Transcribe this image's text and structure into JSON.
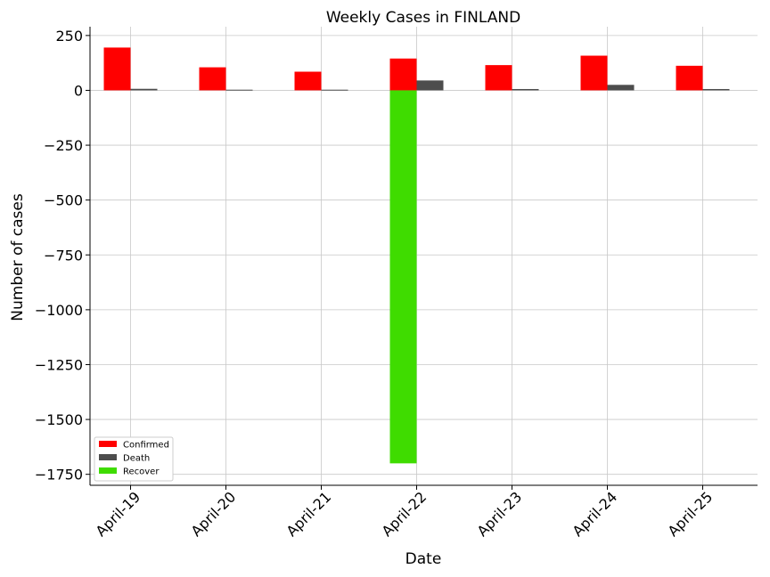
{
  "chart_data": {
    "type": "bar",
    "title": "Weekly Cases in FINLAND",
    "xlabel": "Date",
    "ylabel": "Number of cases",
    "categories": [
      "April-19",
      "April-20",
      "April-21",
      "April-22",
      "April-23",
      "April-24",
      "April-25"
    ],
    "series": [
      {
        "name": "Confirmed",
        "color": "#ff0000",
        "values": [
          195,
          105,
          85,
          145,
          115,
          158,
          112
        ]
      },
      {
        "name": "Death",
        "color": "#4d4d4d",
        "values": [
          7,
          3,
          3,
          45,
          6,
          25,
          6
        ]
      },
      {
        "name": "Recover",
        "color": "#3fdc00",
        "values": [
          0,
          0,
          0,
          -1700,
          0,
          0,
          0
        ]
      }
    ],
    "yticks": [
      250,
      0,
      -250,
      -500,
      -750,
      -1000,
      -1250,
      -1500,
      -1750
    ],
    "ytick_labels": [
      "250",
      "0",
      "−250",
      "−500",
      "−750",
      "−1000",
      "−1250",
      "−1500",
      "−1750"
    ],
    "ylim": [
      -1800,
      290
    ],
    "grid": true,
    "legend_position": "lower-left"
  }
}
